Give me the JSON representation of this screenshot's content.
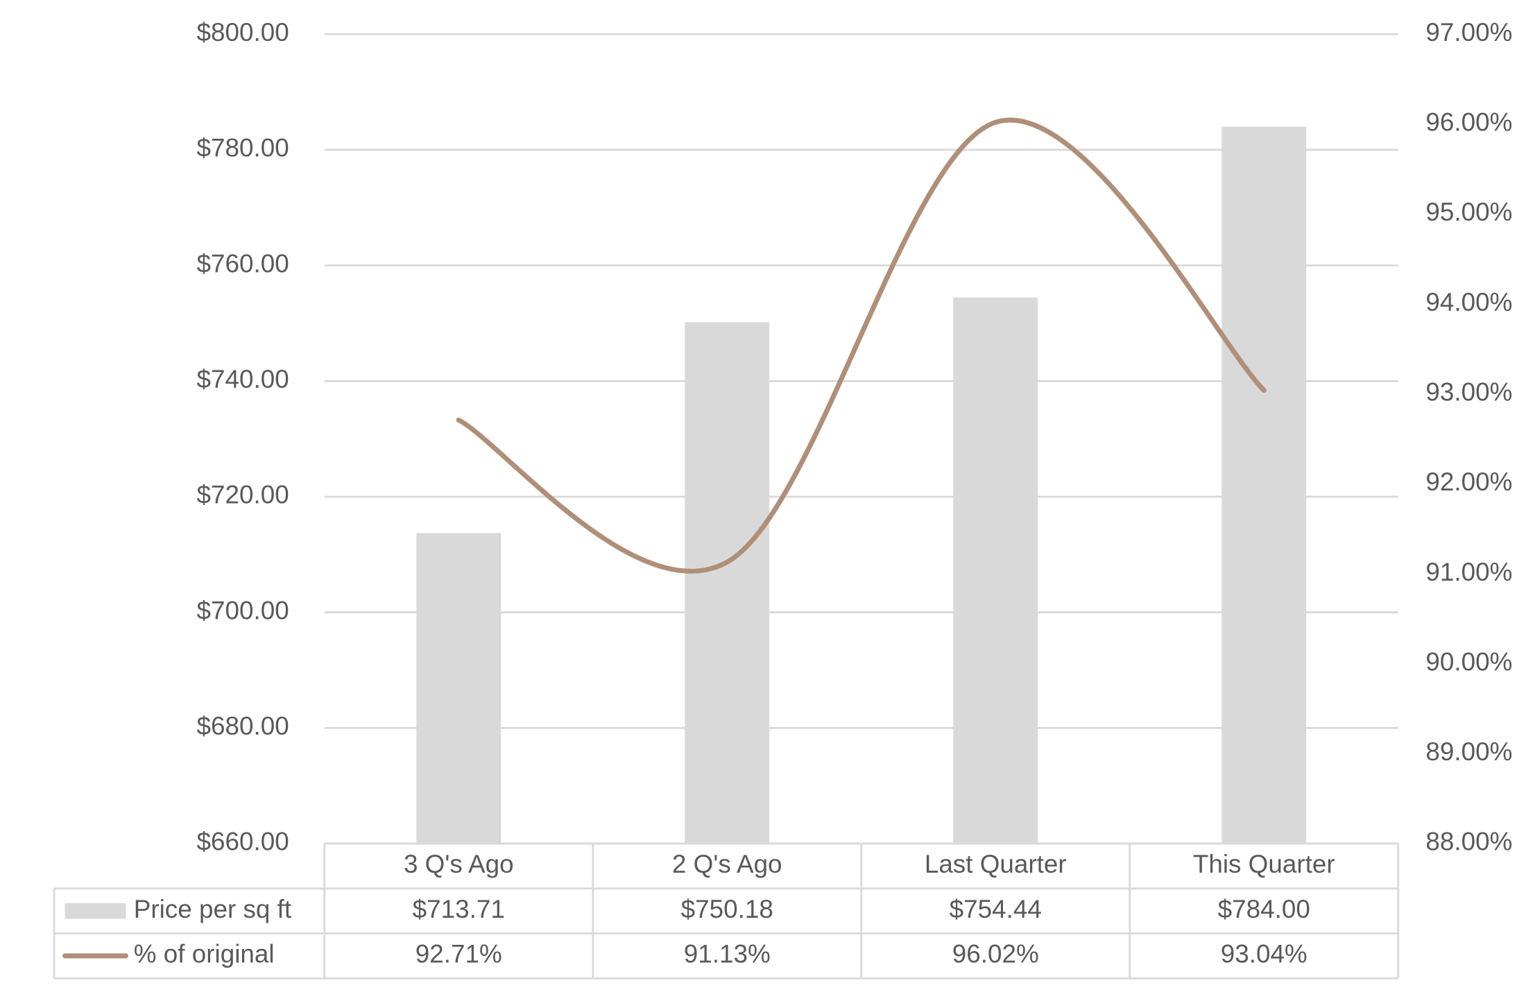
{
  "chart_data": {
    "type": "bar",
    "categories": [
      "3 Q's Ago",
      "2 Q's Ago",
      "Last Quarter",
      "This Quarter"
    ],
    "series": [
      {
        "name": "Price per sq ft",
        "type": "bar",
        "color": "#d9d9d9",
        "values": [
          713.71,
          750.18,
          754.44,
          784.0
        ],
        "value_labels": [
          "$713.71",
          "$750.18",
          "$754.44",
          "$784.00"
        ]
      },
      {
        "name": "% of original",
        "type": "line",
        "axis": "y2",
        "color": "#b08f78",
        "values": [
          92.71,
          91.13,
          96.02,
          93.04
        ],
        "value_labels": [
          "92.71%",
          "91.13%",
          "96.02%",
          "93.04%"
        ]
      }
    ],
    "ylim": [
      660,
      800
    ],
    "yticks": [
      {
        "value": 660,
        "label": "$660.00"
      },
      {
        "value": 680,
        "label": "$680.00"
      },
      {
        "value": 700,
        "label": "$700.00"
      },
      {
        "value": 720,
        "label": "$720.00"
      },
      {
        "value": 740,
        "label": "$740.00"
      },
      {
        "value": 760,
        "label": "$760.00"
      },
      {
        "value": 780,
        "label": "$780.00"
      },
      {
        "value": 800,
        "label": "$800.00"
      }
    ],
    "y2lim": [
      88,
      97
    ],
    "y2ticks": [
      {
        "value": 88,
        "label": "88.00%"
      },
      {
        "value": 89,
        "label": "89.00%"
      },
      {
        "value": 90,
        "label": "90.00%"
      },
      {
        "value": 91,
        "label": "91.00%"
      },
      {
        "value": 92,
        "label": "92.00%"
      },
      {
        "value": 93,
        "label": "93.00%"
      },
      {
        "value": 94,
        "label": "94.00%"
      },
      {
        "value": 95,
        "label": "95.00%"
      },
      {
        "value": 96,
        "label": "96.00%"
      },
      {
        "value": 97,
        "label": "97.00%"
      }
    ],
    "grid": true,
    "smooth": true
  }
}
